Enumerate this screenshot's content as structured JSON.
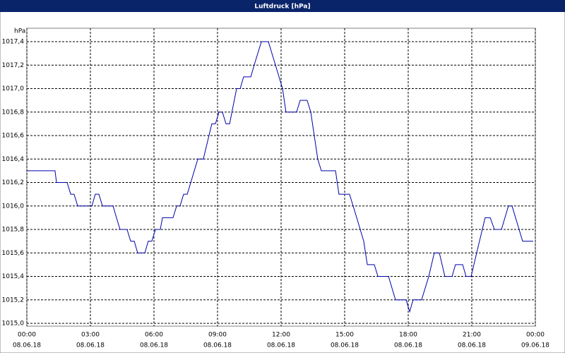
{
  "chart_data": {
    "type": "line",
    "title": "Luftdruck [hPa]",
    "y_unit": "hPa",
    "x": [
      0,
      1.33,
      1.4,
      1.9,
      2.07,
      2.23,
      2.4,
      3.07,
      3.23,
      3.4,
      3.57,
      4.07,
      4.23,
      4.4,
      4.73,
      4.9,
      5.07,
      5.23,
      5.57,
      5.73,
      5.9,
      6.07,
      6.3,
      6.4,
      6.9,
      7.07,
      7.23,
      7.4,
      7.57,
      8.07,
      8.33,
      8.73,
      8.9,
      9.07,
      9.23,
      9.4,
      9.57,
      9.9,
      10.07,
      10.23,
      10.57,
      10.73,
      11.07,
      11.4,
      12.07,
      12.23,
      12.73,
      12.9,
      13.23,
      13.4,
      13.73,
      13.9,
      14.57,
      14.73,
      15.23,
      15.57,
      15.9,
      16.07,
      16.4,
      16.57,
      17.07,
      17.4,
      17.9,
      18.07,
      18.23,
      18.63,
      18.97,
      19.23,
      19.47,
      19.73,
      20.07,
      20.23,
      20.57,
      20.73,
      20.97,
      21.23,
      21.63,
      21.87,
      22.07,
      22.4,
      22.73,
      22.9,
      23.4,
      23.9
    ],
    "values": [
      1016.3,
      1016.3,
      1016.2,
      1016.2,
      1016.1,
      1016.1,
      1016.0,
      1016.0,
      1016.1,
      1016.1,
      1016.0,
      1016.0,
      1015.9,
      1015.8,
      1015.8,
      1015.7,
      1015.7,
      1015.6,
      1015.6,
      1015.7,
      1015.7,
      1015.8,
      1015.8,
      1015.9,
      1015.9,
      1016.0,
      1016.0,
      1016.1,
      1016.1,
      1016.4,
      1016.4,
      1016.7,
      1016.7,
      1016.8,
      1016.8,
      1016.7,
      1016.7,
      1017.0,
      1017.0,
      1017.1,
      1017.1,
      1017.2,
      1017.4,
      1017.4,
      1017.0,
      1016.8,
      1016.8,
      1016.9,
      1016.9,
      1016.8,
      1016.4,
      1016.3,
      1016.3,
      1016.1,
      1016.1,
      1015.9,
      1015.7,
      1015.5,
      1015.5,
      1015.4,
      1015.4,
      1015.2,
      1015.2,
      1015.1,
      1015.2,
      1015.2,
      1015.4,
      1015.6,
      1015.6,
      1015.4,
      1015.4,
      1015.5,
      1015.5,
      1015.4,
      1015.4,
      1015.6,
      1015.9,
      1015.9,
      1015.8,
      1015.8,
      1016.0,
      1016.0,
      1015.7,
      1015.7
    ],
    "color": "#0000a8",
    "xlim": [
      0,
      24
    ],
    "xticks": [
      {
        "value": 0,
        "label": "00:00",
        "date": "08.06.18"
      },
      {
        "value": 3,
        "label": "03:00",
        "date": "08.06.18"
      },
      {
        "value": 6,
        "label": "06:00",
        "date": "08.06.18"
      },
      {
        "value": 9,
        "label": "09:00",
        "date": "08.06.18"
      },
      {
        "value": 12,
        "label": "12:00",
        "date": "08.06.18"
      },
      {
        "value": 15,
        "label": "15:00",
        "date": "08.06.18"
      },
      {
        "value": 18,
        "label": "18:00",
        "date": "08.06.18"
      },
      {
        "value": 21,
        "label": "21:00",
        "date": "08.06.18"
      },
      {
        "value": 24,
        "label": "00:00",
        "date": "09.06.18"
      }
    ],
    "ylim": [
      1015.0,
      1017.4
    ],
    "yticks": [
      {
        "value": 1015.0,
        "label": "1015,0"
      },
      {
        "value": 1015.2,
        "label": "1015,2"
      },
      {
        "value": 1015.4,
        "label": "1015,4"
      },
      {
        "value": 1015.6,
        "label": "1015,6"
      },
      {
        "value": 1015.8,
        "label": "1015,8"
      },
      {
        "value": 1016.0,
        "label": "1016,0"
      },
      {
        "value": 1016.2,
        "label": "1016,2"
      },
      {
        "value": 1016.4,
        "label": "1016,4"
      },
      {
        "value": 1016.6,
        "label": "1016,6"
      },
      {
        "value": 1016.8,
        "label": "1016,8"
      },
      {
        "value": 1017.0,
        "label": "1017,0"
      },
      {
        "value": 1017.2,
        "label": "1017,2"
      },
      {
        "value": 1017.4,
        "label": "1017,4"
      }
    ],
    "grid": true
  }
}
